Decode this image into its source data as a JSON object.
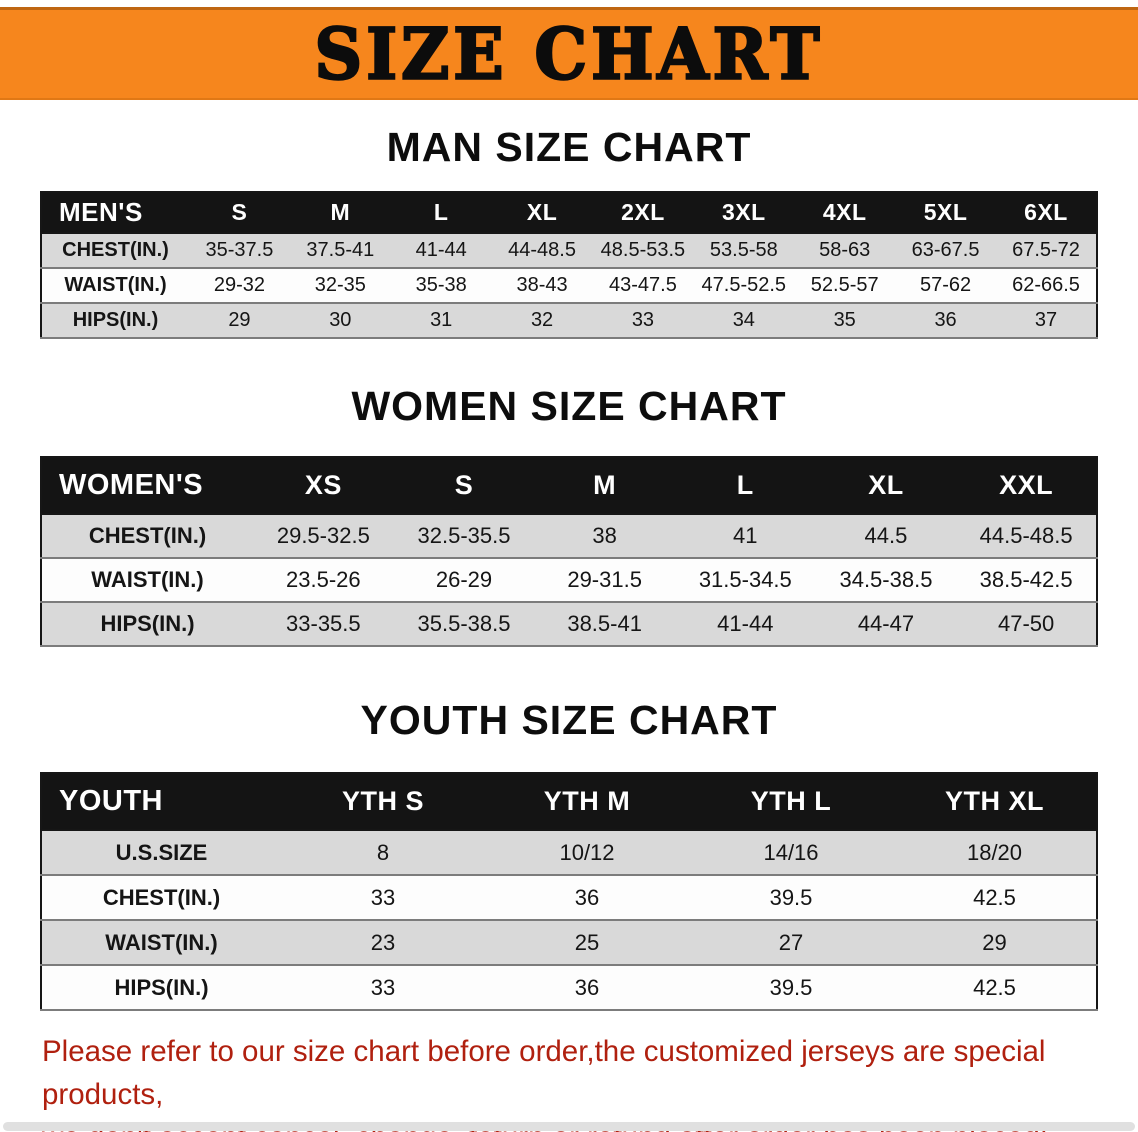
{
  "banner": {
    "title": "SIZE CHART"
  },
  "colors": {
    "banner_bg": "#f6861d",
    "table_header_bg": "#141414",
    "table_header_text": "#ffffff",
    "row_shaded": "#d9d9d9",
    "row_plain": "#fdfdfd",
    "heading_text": "#0d0d0d",
    "notice_text": "#b0200f"
  },
  "chart_data": [
    {
      "type": "table",
      "title": "MAN SIZE CHART",
      "header": [
        "MEN'S",
        "S",
        "M",
        "L",
        "XL",
        "2XL",
        "3XL",
        "4XL",
        "5XL",
        "6XL"
      ],
      "rows": [
        [
          "CHEST(IN.)",
          "35-37.5",
          "37.5-41",
          "41-44",
          "44-48.5",
          "48.5-53.5",
          "53.5-58",
          "58-63",
          "63-67.5",
          "67.5-72"
        ],
        [
          "WAIST(IN.)",
          "29-32",
          "32-35",
          "35-38",
          "38-43",
          "43-47.5",
          "47.5-52.5",
          "52.5-57",
          "57-62",
          "62-66.5"
        ],
        [
          "HIPS(IN.)",
          "29",
          "30",
          "31",
          "32",
          "33",
          "34",
          "35",
          "36",
          "37"
        ]
      ]
    },
    {
      "type": "table",
      "title": "WOMEN SIZE CHART",
      "header": [
        "WOMEN'S",
        "XS",
        "S",
        "M",
        "L",
        "XL",
        "XXL"
      ],
      "rows": [
        [
          "CHEST(IN.)",
          "29.5-32.5",
          "32.5-35.5",
          "38",
          "41",
          "44.5",
          "44.5-48.5"
        ],
        [
          "WAIST(IN.)",
          "23.5-26",
          "26-29",
          "29-31.5",
          "31.5-34.5",
          "34.5-38.5",
          "38.5-42.5"
        ],
        [
          "HIPS(IN.)",
          "33-35.5",
          "35.5-38.5",
          "38.5-41",
          "41-44",
          "44-47",
          "47-50"
        ]
      ]
    },
    {
      "type": "table",
      "title": "YOUTH SIZE CHART",
      "header": [
        "YOUTH",
        "YTH S",
        "YTH M",
        "YTH L",
        "YTH XL"
      ],
      "rows": [
        [
          "U.S.SIZE",
          "8",
          "10/12",
          "14/16",
          "18/20"
        ],
        [
          "CHEST(IN.)",
          "33",
          "36",
          "39.5",
          "42.5"
        ],
        [
          "WAIST(IN.)",
          "23",
          "25",
          "27",
          "29"
        ],
        [
          "HIPS(IN.)",
          "33",
          "36",
          "39.5",
          "42.5"
        ]
      ]
    }
  ],
  "footer": {
    "line1": "Please refer to our size chart before order,the customized jerseys are special products,",
    "line2": "we don't accept cancel, change, teturn or refund after order has been placed!"
  }
}
